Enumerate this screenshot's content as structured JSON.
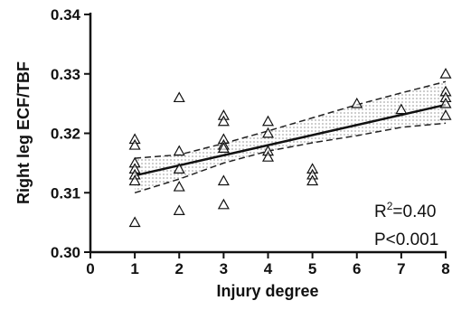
{
  "chart_data": {
    "type": "scatter",
    "title": "",
    "xlabel": "Injury degree",
    "ylabel": "Right leg ECF/TBF",
    "xlim": [
      0,
      8
    ],
    "ylim": [
      0.3,
      0.34
    ],
    "xticks": [
      "0",
      "1",
      "2",
      "3",
      "4",
      "5",
      "6",
      "7",
      "8"
    ],
    "yticks": [
      "0.30",
      "0.31",
      "0.32",
      "0.33",
      "0.34"
    ],
    "grid": false,
    "marker": "open-triangle",
    "points": [
      {
        "x": 1,
        "y": 0.319
      },
      {
        "x": 1,
        "y": 0.318
      },
      {
        "x": 1,
        "y": 0.315
      },
      {
        "x": 1,
        "y": 0.314
      },
      {
        "x": 1,
        "y": 0.313
      },
      {
        "x": 1,
        "y": 0.312
      },
      {
        "x": 1,
        "y": 0.305
      },
      {
        "x": 2,
        "y": 0.326
      },
      {
        "x": 2,
        "y": 0.317
      },
      {
        "x": 2,
        "y": 0.314
      },
      {
        "x": 2,
        "y": 0.311
      },
      {
        "x": 2,
        "y": 0.307
      },
      {
        "x": 3,
        "y": 0.323
      },
      {
        "x": 3,
        "y": 0.322
      },
      {
        "x": 3,
        "y": 0.319
      },
      {
        "x": 3,
        "y": 0.318
      },
      {
        "x": 3,
        "y": 0.3175
      },
      {
        "x": 3,
        "y": 0.312
      },
      {
        "x": 3,
        "y": 0.308
      },
      {
        "x": 4,
        "y": 0.322
      },
      {
        "x": 4,
        "y": 0.32
      },
      {
        "x": 4,
        "y": 0.317
      },
      {
        "x": 4,
        "y": 0.316
      },
      {
        "x": 5,
        "y": 0.314
      },
      {
        "x": 5,
        "y": 0.313
      },
      {
        "x": 5,
        "y": 0.312
      },
      {
        "x": 6,
        "y": 0.325
      },
      {
        "x": 7,
        "y": 0.324
      },
      {
        "x": 8,
        "y": 0.33
      },
      {
        "x": 8,
        "y": 0.327
      },
      {
        "x": 8,
        "y": 0.326
      },
      {
        "x": 8,
        "y": 0.325
      },
      {
        "x": 8,
        "y": 0.323
      }
    ],
    "regression_line": {
      "x": [
        1,
        8
      ],
      "y": [
        0.3129,
        0.3248
      ]
    },
    "confidence_band": {
      "x": [
        1,
        2,
        3,
        4,
        5,
        6,
        7,
        8
      ],
      "upper": [
        0.3158,
        0.3164,
        0.3183,
        0.3204,
        0.3226,
        0.3248,
        0.3268,
        0.3287
      ],
      "lower": [
        0.31,
        0.3123,
        0.315,
        0.317,
        0.3184,
        0.3196,
        0.321,
        0.3217
      ]
    },
    "annotations": {
      "r2_prefix": "R",
      "r2_sup": "2",
      "r2_value": "=0.40",
      "p_value": "P<0.001"
    }
  }
}
